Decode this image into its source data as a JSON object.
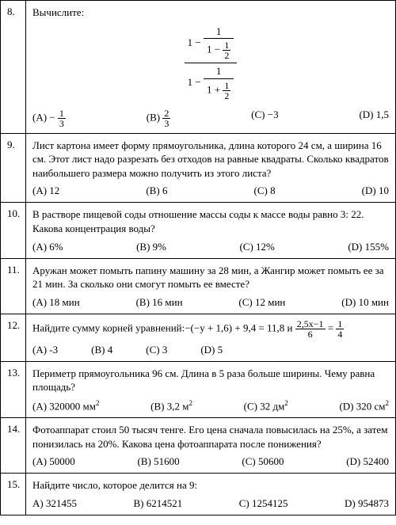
{
  "rows": [
    {
      "n": "8.",
      "text": "Вычислите:",
      "a": "(A) − ⅓",
      "b": "(B) ⅔",
      "c": "(C) −3",
      "d": "(D) 1,5"
    },
    {
      "n": "9.",
      "text": "Лист картона имеет форму прямоугольника, длина которого 24 см, а ширина 16 см. Этот лист надо разрезать без отходов на равные квадраты. Сколько квадратов наибольшего размера можно получить из этого листа?",
      "a": "(A) 12",
      "b": "(B) 6",
      "c": "(C) 8",
      "d": "(D) 10"
    },
    {
      "n": "10.",
      "text": "В растворе пищевой соды отношение массы соды к массе воды равно 3: 22. Какова концентрация воды?",
      "a": "(A) 6%",
      "b": "(B) 9%",
      "c": "(C) 12%",
      "d": "(D) 155%"
    },
    {
      "n": "11.",
      "text": "Аружан может помыть папину машину за 28 мин, а Жангир может помыть ее за 21 мин. За сколько они смогут помыть ее вместе?",
      "a": "(A) 18 мин",
      "b": "(B) 16 мин",
      "c": "(C) 12 мин",
      "d": "(D) 10 мин"
    },
    {
      "n": "12.",
      "text_prefix": "Найдите сумму корней уравнений:−(−y + 1,6) + 9,4 = 11,8 и ",
      "text_suffix": "",
      "eq_num": "2,5x−1",
      "eq_den": "6",
      "eq_rhs_n": "1",
      "eq_rhs_d": "4",
      "a": "(A) -3",
      "b": "(B) 4",
      "c": "(C) 3",
      "d": "(D) 5"
    },
    {
      "n": "13.",
      "text": "Периметр прямоугольника 96 см. Длина в 5 раза больше ширины. Чему равна площадь?",
      "a": "(A) 320000 мм²",
      "b": "(B) 3,2 м²",
      "c": "(C) 32 дм²",
      "d": "(D) 320 см²"
    },
    {
      "n": "14.",
      "text": "Фотоаппарат стоил 50 тысяч тенге. Его цена сначала повысилась на 25%, а затем понизилась на 20%. Какова цена фотоаппарата после понижения?",
      "a": "(A) 50000",
      "b": "(B) 51600",
      "c": "(C) 50600",
      "d": "(D) 52400"
    },
    {
      "n": "15.",
      "text": "Найдите число, которое делится на 9:",
      "a": "A) 321455",
      "b": "B) 6214521",
      "c": "C) 1254125",
      "d": "D) 954873"
    }
  ]
}
